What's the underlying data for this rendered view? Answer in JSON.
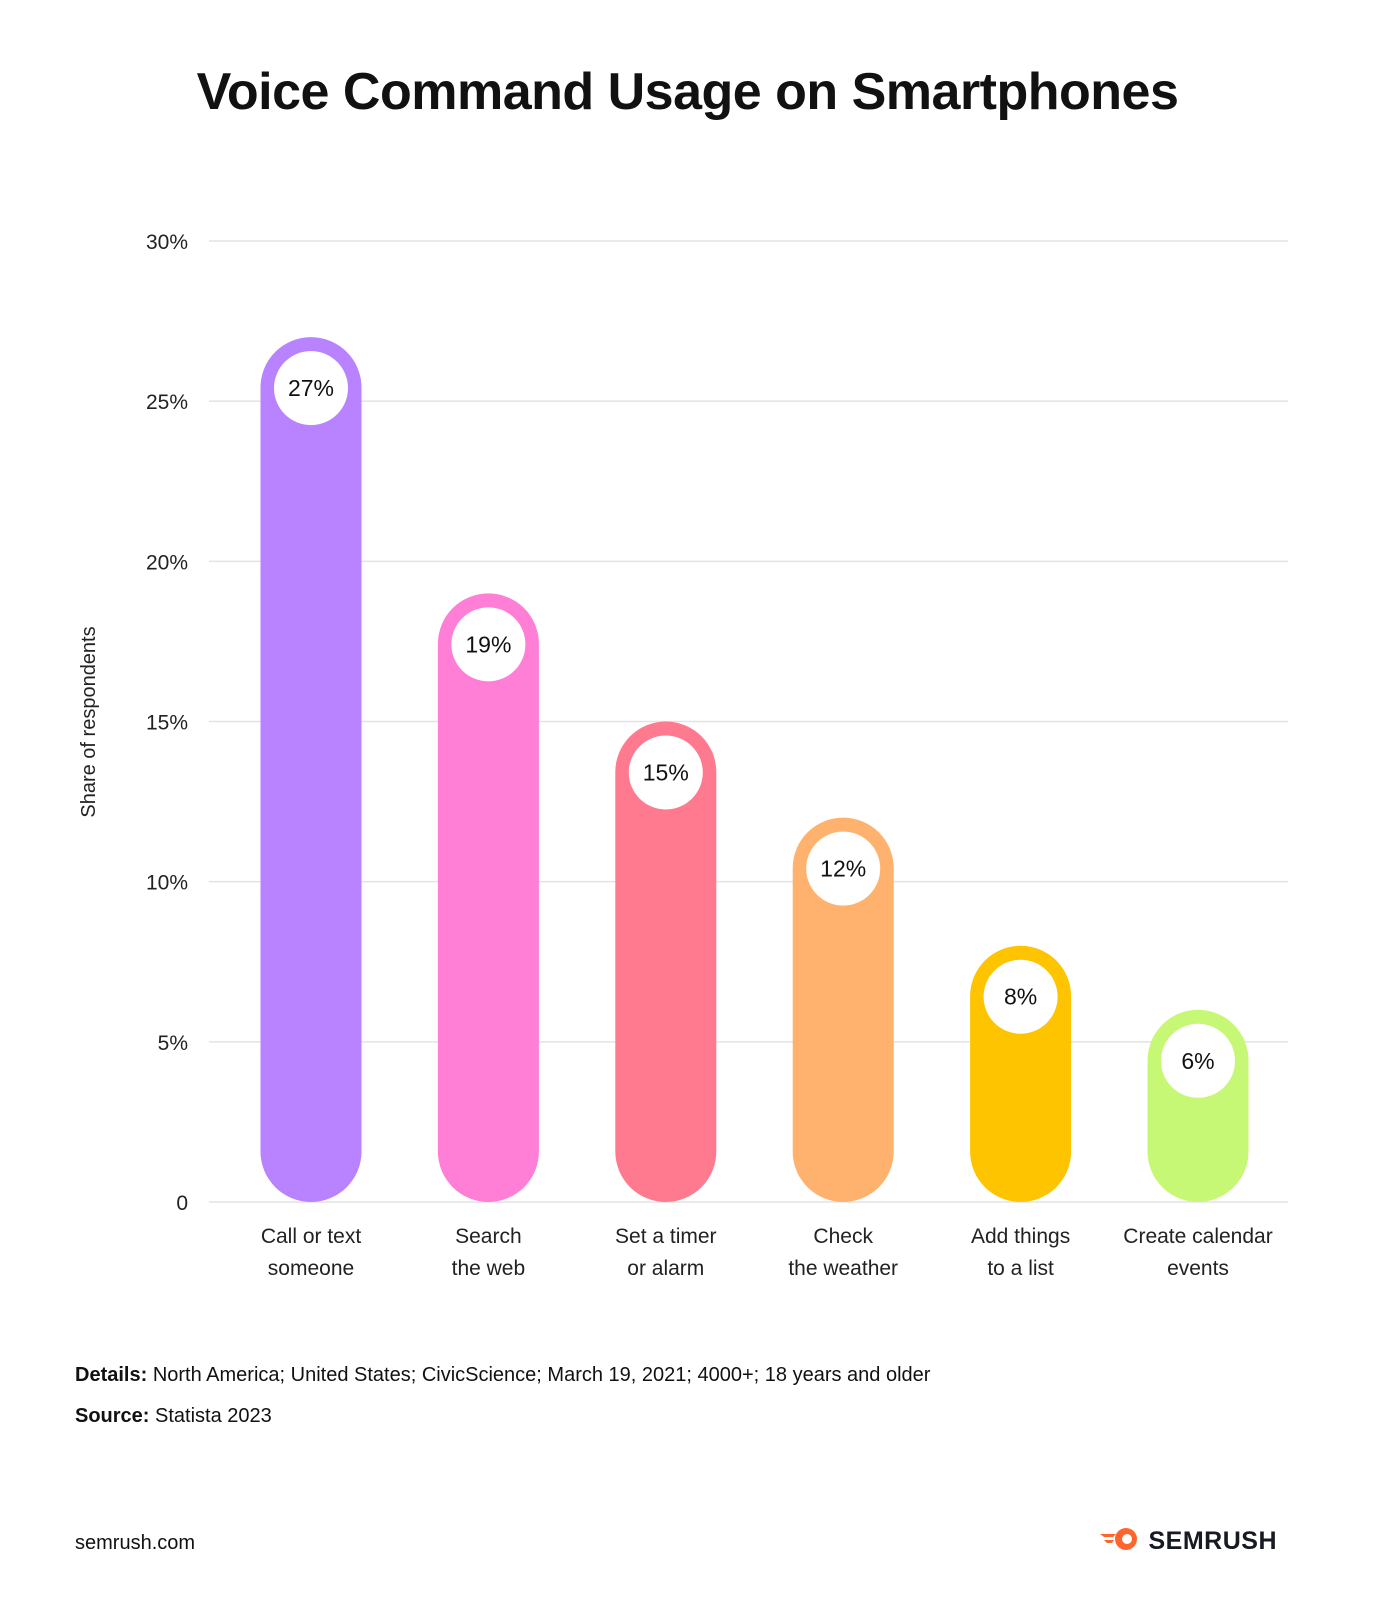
{
  "title": "Voice Command Usage on Smartphones",
  "chart_data": {
    "type": "bar",
    "ylabel": "Share of respondents",
    "ylim": [
      0,
      30
    ],
    "yticks": [
      0,
      5,
      10,
      15,
      20,
      25,
      30
    ],
    "ytick_labels": [
      "0",
      "5%",
      "10%",
      "15%",
      "20%",
      "25%",
      "30%"
    ],
    "grid": true,
    "categories": [
      [
        "Call or text",
        "someone"
      ],
      [
        "Search",
        "the web"
      ],
      [
        "Set a timer",
        "or alarm"
      ],
      [
        "Check",
        "the weather"
      ],
      [
        "Add things",
        "to a list"
      ],
      [
        "Create calendar",
        "events"
      ]
    ],
    "values": [
      27,
      19,
      15,
      12,
      8,
      6
    ],
    "value_labels": [
      "27%",
      "19%",
      "15%",
      "12%",
      "8%",
      "6%"
    ],
    "colors": [
      "#b982ff",
      "#ff7ed6",
      "#ff798f",
      "#ffb26e",
      "#ffc400",
      "#c7f875"
    ]
  },
  "details_label": "Details:",
  "details_text": "North America;  United States; CivicScience;  March 19, 2021; 4000+; 18 years and older",
  "source_label": "Source:",
  "source_text": "Statista 2023",
  "site": "semrush.com",
  "brand": {
    "name": "SEMRUSH",
    "icon": "semrush-fireball-icon",
    "icon_color": "#ff642d"
  }
}
